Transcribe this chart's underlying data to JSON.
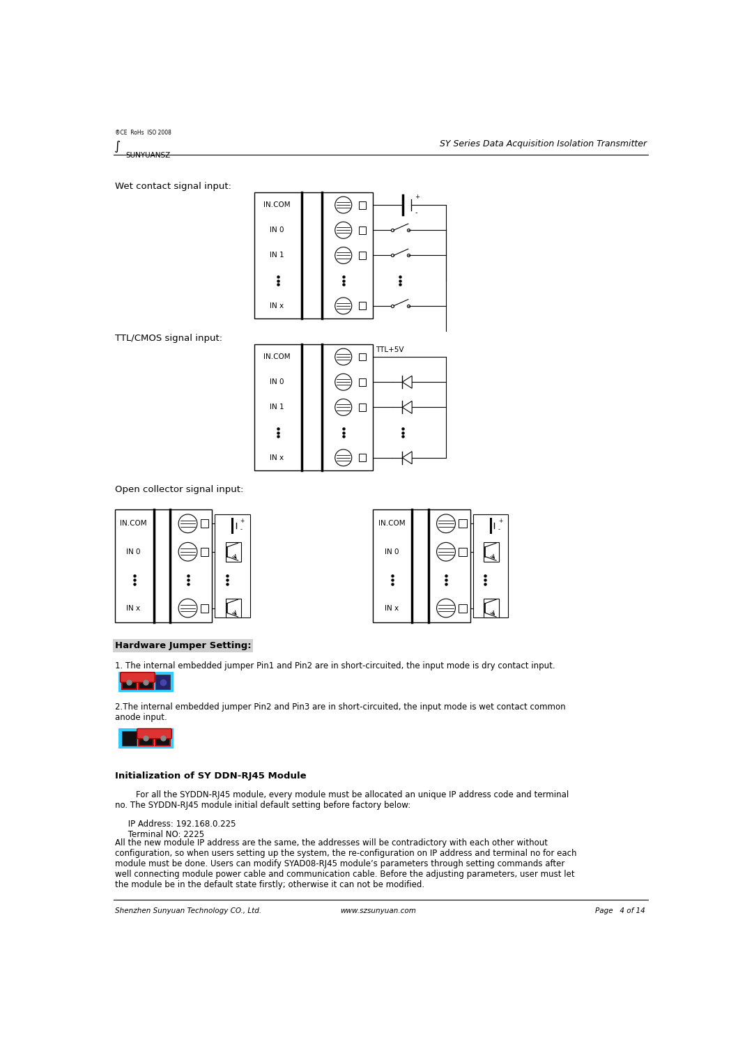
{
  "page_width": 10.59,
  "page_height": 14.98,
  "background_color": "#ffffff",
  "header_right": "SY Series Data Acquisition Isolation Transmitter",
  "footer_left": "Shenzhen Sunyuan Technology CO., Ltd.",
  "footer_center": "www.szsunyuan.com",
  "footer_right": "Page   4 of 14",
  "section1_label": "Wet contact signal input:",
  "section2_label": "TTL/CMOS signal input:",
  "section3_label": "Open collector signal input:",
  "jumper_title": "Hardware Jumper Setting:",
  "jumper_text1": "1. The internal embedded jumper Pin1 and Pin2 are in short-circuited, the input mode is dry contact input.",
  "jumper_text2": "2.The internal embedded jumper Pin2 and Pin3 are in short-circuited, the input mode is wet contact common\nanode input.",
  "init_title": "Initialization of SY DDN-RJ45 Module",
  "init_para1": "        For all the SYDDN-RJ45 module, every module must be allocated an unique IP address code and terminal\nno. The SYDDN-RJ45 module initial default setting before factory below:",
  "init_para2": "     IP Address: 192.168.0.225\n     Terminal NO: 2225",
  "init_para3": "All the new module IP address are the same, the addresses will be contradictory with each other without\nconfiguration, so when users setting up the system, the re-configuration on IP address and terminal no for each\nmodule must be done. Users can modify SYAD08-RJ45 module’s parameters through setting commands after\nwell connecting module power cable and communication cable. Before the adjusting parameters, user must let\nthe module be in the default state firstly; otherwise it can not be modified."
}
